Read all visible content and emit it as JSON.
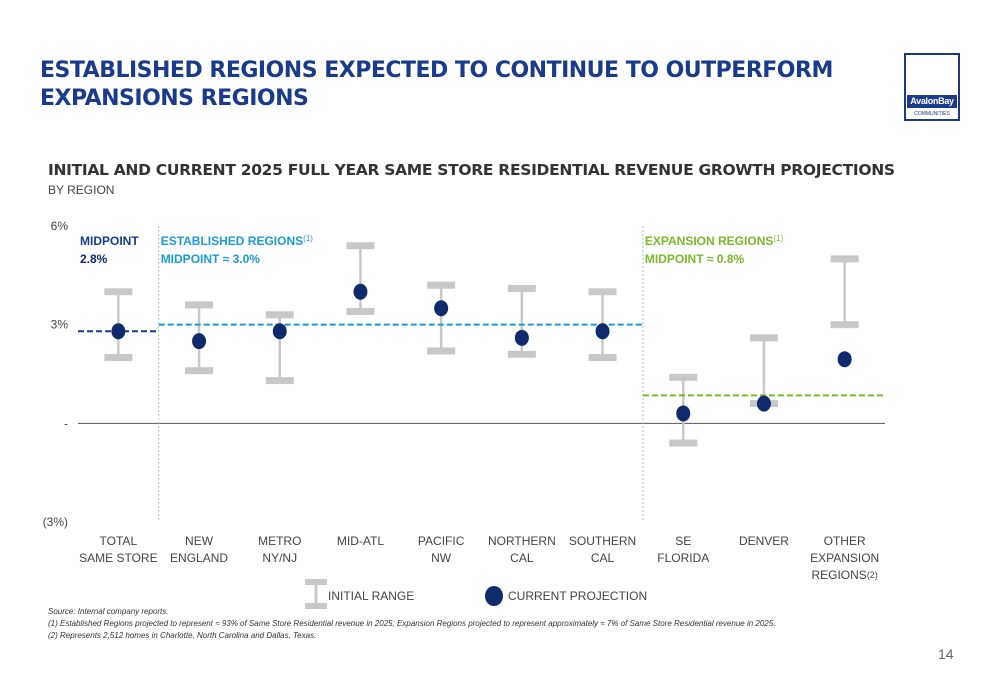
{
  "slide": {
    "title_line1": "ESTABLISHED REGIONS EXPECTED TO CONTINUE TO OUTPERFORM",
    "title_line2": "EXPANSIONS REGIONS",
    "logo_text": "AvalonBay",
    "logo_subtext": "COMMUNITIES",
    "page_number": "14"
  },
  "chart_data": {
    "type": "scatter",
    "title": "INITIAL AND CURRENT 2025 FULL YEAR SAME STORE RESIDENTIAL REVENUE GROWTH PROJECTIONS",
    "subtitle": "BY REGION",
    "yticks": [
      "6%",
      "3%",
      "-",
      "(3%)"
    ],
    "ylim": [
      -3,
      6
    ],
    "categories": [
      [
        "TOTAL",
        "SAME STORE"
      ],
      [
        "NEW",
        "ENGLAND"
      ],
      [
        "METRO",
        "NY/NJ"
      ],
      [
        "MID-ATL"
      ],
      [
        "PACIFIC",
        "NW"
      ],
      [
        "NORTHERN",
        "CAL"
      ],
      [
        "SOUTHERN",
        "CAL"
      ],
      [
        "SE",
        "FLORIDA"
      ],
      [
        "DENVER"
      ],
      [
        "OTHER",
        "EXPANSION",
        "REGIONS"
      ]
    ],
    "category_footnote": "(2)",
    "series": [
      {
        "name": "INITIAL RANGE",
        "type": "range",
        "low": [
          2.0,
          1.6,
          1.3,
          3.4,
          2.2,
          2.1,
          2.0,
          -0.6,
          0.6,
          3.0
        ],
        "high": [
          4.0,
          3.6,
          3.3,
          5.4,
          4.2,
          4.1,
          4.0,
          1.4,
          2.6,
          5.0
        ]
      },
      {
        "name": "CURRENT PROJECTION",
        "type": "point",
        "values": [
          2.8,
          2.5,
          2.8,
          4.0,
          3.5,
          2.6,
          2.8,
          0.3,
          0.6,
          1.95
        ]
      }
    ],
    "reference_lines": [
      {
        "label": "MIDPOINT",
        "value_text": "2.8%",
        "value": 2.8,
        "color": "#1a3a8c",
        "from_index": 0,
        "to_index": 0
      },
      {
        "label": "ESTABLISHED REGIONS",
        "sup": "(1)",
        "value_text": "MIDPOINT ≈ 3.0%",
        "value": 3.0,
        "color": "#1a9ad6",
        "from_index": 1,
        "to_index": 6
      },
      {
        "label": "EXPANSION REGIONS",
        "sup": "(1)",
        "value_text": "MIDPOINT ≈ 0.8%",
        "value": 0.85,
        "color": "#7ab929",
        "from_index": 7,
        "to_index": 9
      }
    ],
    "colors": {
      "range": "#c8c8c8",
      "point": "#0f2b6b",
      "axis": "#555555",
      "divider": "#bbbbbb"
    }
  },
  "footnotes": {
    "source": "Source: Internal company reports.",
    "note1": "(1)     Established Regions projected to represent ≈ 93% of Same Store Residential revenue in 2025; Expansion Regions projected to represent approximately ≈ 7% of Same Store Residential revenue in 2025.",
    "note2": "(2)     Represents 2,512 homes in Charlotte, North Carolina and Dallas, Texas."
  }
}
